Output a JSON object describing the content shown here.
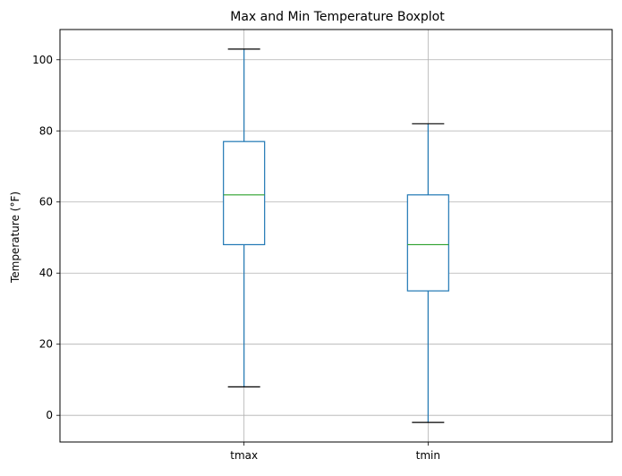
{
  "chart_data": {
    "type": "box",
    "title": "Max and Min Temperature Boxplot",
    "xlabel": "",
    "ylabel": "Temperature (°F)",
    "categories": [
      "tmax",
      "tmin"
    ],
    "boxes": [
      {
        "category": "tmax",
        "whisker_low": 8,
        "q1": 48,
        "median": 62,
        "q3": 77,
        "whisker_high": 103
      },
      {
        "category": "tmin",
        "whisker_low": -2,
        "q1": 35,
        "median": 48,
        "q3": 62,
        "whisker_high": 82
      }
    ],
    "ylim": [
      -7.5,
      108.5
    ],
    "yticks": [
      0,
      20,
      40,
      60,
      80,
      100
    ],
    "grid": true,
    "colors": {
      "box": "#1f77b4",
      "median": "#2ca02c",
      "cap": "#000000",
      "grid": "#b0b0b0",
      "axis": "#000000"
    }
  }
}
